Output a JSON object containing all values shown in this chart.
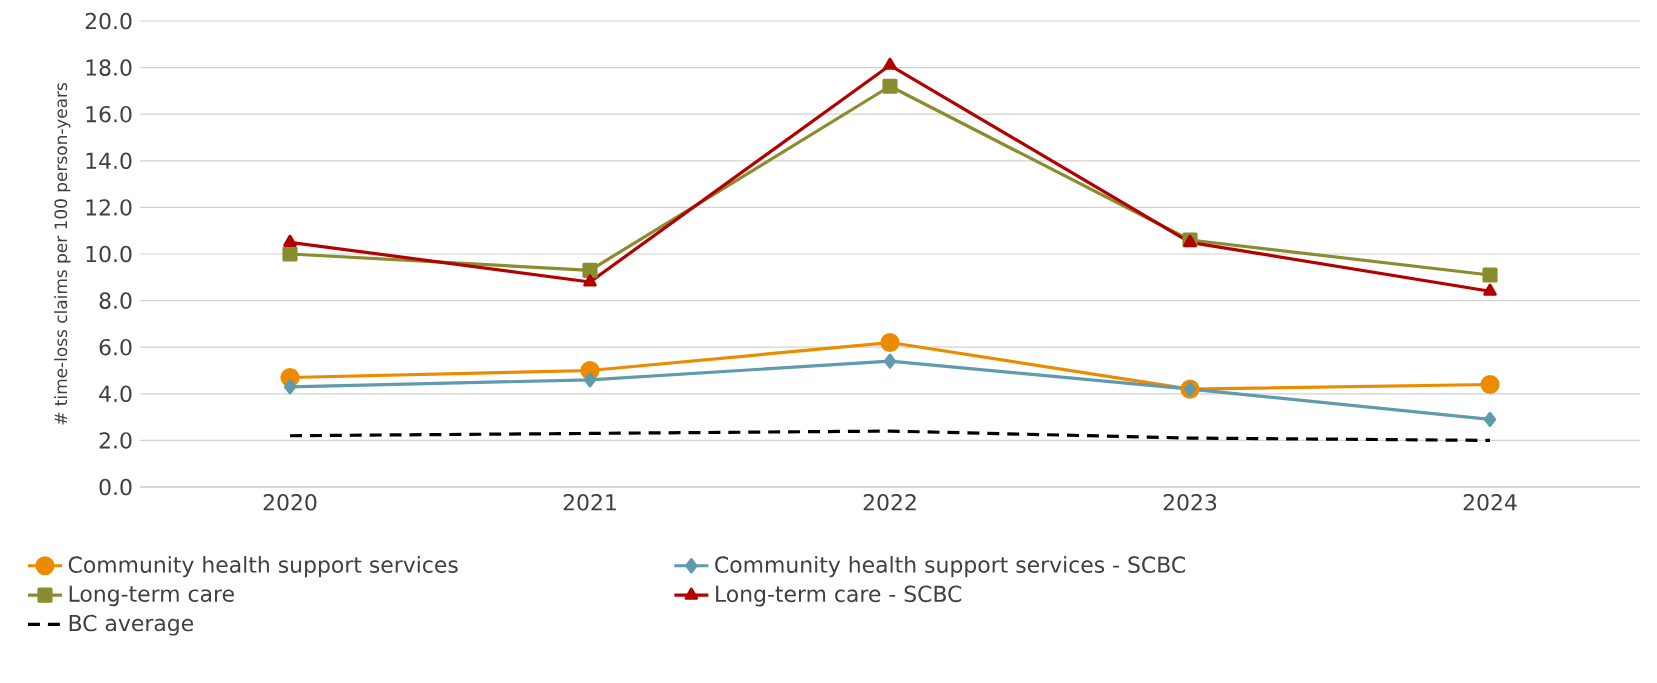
{
  "chart_data": {
    "type": "line",
    "ylabel": "# time-loss claims per 100 person-years",
    "categories": [
      "2020",
      "2021",
      "2022",
      "2023",
      "2024"
    ],
    "series": [
      {
        "name": "Community health support services",
        "color": "#ed8b00",
        "marker": "circle",
        "values": [
          4.7,
          5.0,
          6.2,
          4.2,
          4.4
        ]
      },
      {
        "name": "Community health support services - SCBC",
        "color": "#5f9aad",
        "marker": "diamond",
        "values": [
          4.3,
          4.6,
          5.4,
          4.2,
          2.9
        ]
      },
      {
        "name": "Long-term care",
        "color": "#8a8d2f",
        "marker": "square",
        "values": [
          10.0,
          9.3,
          17.2,
          10.6,
          9.1
        ]
      },
      {
        "name": "Long-term care - SCBC",
        "color": "#b30000",
        "marker": "triangle",
        "values": [
          10.5,
          8.8,
          18.1,
          10.5,
          8.4
        ]
      },
      {
        "name": "BC average",
        "color": "#000000",
        "marker": "none",
        "line_style": "dashed",
        "values": [
          2.2,
          2.3,
          2.4,
          2.1,
          2.0
        ]
      }
    ],
    "ylim": [
      0,
      20
    ],
    "yticks": [
      {
        "value": 0,
        "label": "0.0"
      },
      {
        "value": 2,
        "label": "2.0"
      },
      {
        "value": 4,
        "label": "4.0"
      },
      {
        "value": 6,
        "label": "6.0"
      },
      {
        "value": 8,
        "label": "8.0"
      },
      {
        "value": 10,
        "label": "10.0"
      },
      {
        "value": 12,
        "label": "12.0"
      },
      {
        "value": 14,
        "label": "14.0"
      },
      {
        "value": 16,
        "label": "16.0"
      },
      {
        "value": 18,
        "label": "18.0"
      },
      {
        "value": 20,
        "label": "20.0"
      }
    ],
    "grid": "y",
    "legend": "bottom"
  }
}
